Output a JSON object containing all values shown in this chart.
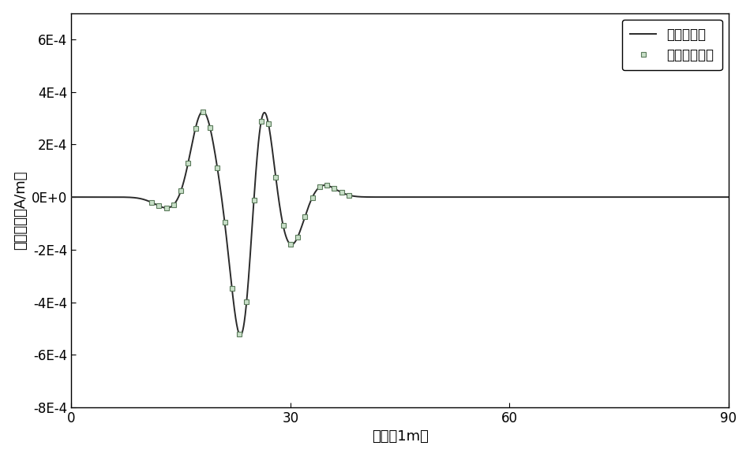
{
  "title": "",
  "xlabel": "时间（1m）",
  "ylabel": "电流密度（A/m）",
  "xlim": [
    0,
    90
  ],
  "ylim": [
    -0.0008,
    0.0007
  ],
  "yticks": [
    -0.0008,
    -0.0006,
    -0.0004,
    -0.0002,
    0,
    0.0002,
    0.0004,
    0.0006
  ],
  "ytick_labels": [
    "-8E-4",
    "-6E-4",
    "-4E-4",
    "-2E-4",
    "0E+0",
    "2E-4",
    "4E-4",
    "6E-4"
  ],
  "xticks": [
    0,
    30,
    60,
    90
  ],
  "line_color": "#2a2a2a",
  "marker_edgecolor": "#5a7a5a",
  "marker_facecolor": "#c8dfc8",
  "background_color": "#ffffff",
  "legend_line_label": "隐式法求解",
  "legend_marker_label": "准显式法求解"
}
